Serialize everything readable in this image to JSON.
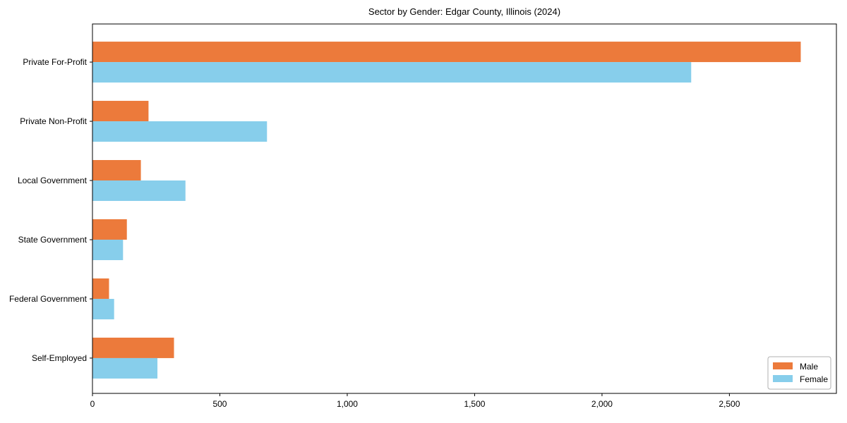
{
  "title": "Sector by Gender: Edgar County, Illinois (2024)",
  "chart_data": {
    "type": "bar",
    "orientation": "horizontal",
    "title": "Sector by Gender: Edgar County, Illinois (2024)",
    "xlabel": "",
    "ylabel": "",
    "categories": [
      "Private For-Profit",
      "Private Non-Profit",
      "Local Government",
      "State Government",
      "Federal Government",
      "Self-Employed"
    ],
    "series": [
      {
        "name": "Male",
        "color": "#EC7A3B",
        "values": [
          2780,
          220,
          190,
          135,
          65,
          320
        ]
      },
      {
        "name": "Female",
        "color": "#87CEEB",
        "values": [
          2350,
          685,
          365,
          120,
          85,
          255
        ]
      }
    ],
    "xlim": [
      0,
      2920
    ],
    "xticks": {
      "values": [
        0,
        500,
        1000,
        1500,
        2000,
        2500
      ],
      "labels": [
        "0",
        "500",
        "1,000",
        "1,500",
        "2,000",
        "2,500"
      ]
    },
    "grid": false,
    "legend": {
      "position": "lower right",
      "entries": [
        "Male",
        "Female"
      ]
    }
  },
  "colors": {
    "male": "#EC7A3B",
    "female": "#87CEEB",
    "spine": "#000000",
    "background": "#FFFFFF",
    "legend_border": "#b0b0b0"
  }
}
